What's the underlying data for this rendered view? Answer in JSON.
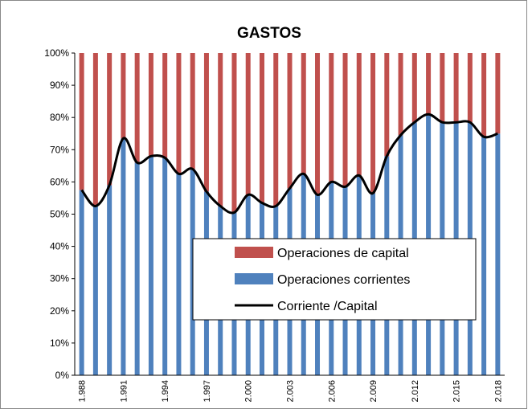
{
  "chart_data": {
    "type": "bar",
    "stacked": true,
    "title": "GASTOS",
    "categories": [
      "1.988",
      null,
      null,
      "1.991",
      null,
      null,
      "1.994",
      null,
      null,
      "1.997",
      null,
      null,
      "2.000",
      null,
      null,
      "2.003",
      null,
      null,
      "2.006",
      null,
      null,
      "2.009",
      null,
      null,
      "2.012",
      null,
      null,
      "2.015",
      null,
      null,
      "2.018"
    ],
    "series": [
      {
        "name": "Operaciones de capital",
        "color": "#c0504d",
        "type": "bar",
        "values": [
          42.5,
          47.5,
          41,
          26.5,
          34,
          32,
          32.5,
          37.5,
          36,
          43,
          47.5,
          49.5,
          44,
          46.5,
          47.5,
          42,
          37.5,
          44,
          40,
          41.5,
          38,
          43.5,
          32,
          25.5,
          21.5,
          19,
          21.5,
          21.5,
          21.5,
          26,
          25
        ]
      },
      {
        "name": "Operaciones corrientes",
        "color": "#4f81bd",
        "type": "bar",
        "values": [
          57.5,
          52.5,
          59,
          73.5,
          66,
          68,
          67.5,
          62.5,
          64,
          57,
          52.5,
          50.5,
          56,
          53.5,
          52.5,
          58,
          62.5,
          56,
          60,
          58.5,
          62,
          56.5,
          68,
          74.5,
          78.5,
          81,
          78.5,
          78.5,
          78.5,
          74,
          75
        ]
      },
      {
        "name": "Corriente /Capital",
        "color": "#000000",
        "type": "line",
        "values": [
          57.5,
          52.5,
          59,
          73.5,
          66,
          68,
          67.5,
          62.5,
          64,
          57,
          52.5,
          50.5,
          56,
          53.5,
          52.5,
          58,
          62.5,
          56,
          60,
          58.5,
          62,
          56.5,
          68,
          74.5,
          78.5,
          81,
          78.5,
          78.5,
          78.5,
          74,
          75
        ]
      }
    ],
    "ylim": [
      0,
      100
    ],
    "yticks": [
      {
        "value": 0,
        "label": "0%"
      },
      {
        "value": 10,
        "label": "10%"
      },
      {
        "value": 20,
        "label": "20%"
      },
      {
        "value": 30,
        "label": "30%"
      },
      {
        "value": 40,
        "label": "40%"
      },
      {
        "value": 50,
        "label": "50%"
      },
      {
        "value": 60,
        "label": "60%"
      },
      {
        "value": 70,
        "label": "70%"
      },
      {
        "value": 80,
        "label": "80%"
      },
      {
        "value": 90,
        "label": "90%"
      },
      {
        "value": 100,
        "label": "100%"
      }
    ]
  }
}
